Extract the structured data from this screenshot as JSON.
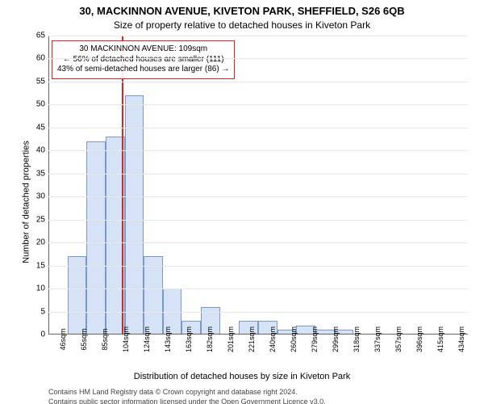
{
  "title_main": "30, MACKINNON AVENUE, KIVETON PARK, SHEFFIELD, S26 6QB",
  "title_sub": "Size of property relative to detached houses in Kiveton Park",
  "ylabel": "Number of detached properties",
  "xlabel": "Distribution of detached houses by size in Kiveton Park",
  "footer1": "Contains HM Land Registry data © Crown copyright and database right 2024.",
  "footer2": "Contains public sector information licensed under the Open Government Licence v3.0.",
  "annot": {
    "line1": "30 MACKINNON AVENUE: 109sqm",
    "line2": "← 56% of detached houses are smaller (111)",
    "line3": "43% of semi-detached houses are larger (86) →"
  },
  "chart": {
    "type": "histogram",
    "background_color": "#ffffff",
    "grid_color": "#e8e8e8",
    "bar_fill": "#d6e3f6",
    "bar_border": "#7a99c9",
    "ref_color": "#d22",
    "ymin": 0,
    "ymax": 65,
    "ytick_step": 5,
    "bin_start": 36,
    "bin_width": 19,
    "bin_count": 22,
    "ref_value": 109,
    "values": [
      0,
      17,
      42,
      43,
      52,
      17,
      10,
      3,
      6,
      0,
      3,
      3,
      1,
      2,
      1,
      1,
      0,
      0,
      0,
      0,
      0,
      0
    ],
    "xtick_labels": [
      "46sqm",
      "65sqm",
      "85sqm",
      "104sqm",
      "124sqm",
      "143sqm",
      "163sqm",
      "182sqm",
      "201sqm",
      "221sqm",
      "240sqm",
      "260sqm",
      "279sqm",
      "299sqm",
      "318sqm",
      "337sqm",
      "357sqm",
      "396sqm",
      "415sqm",
      "434sqm"
    ],
    "axis_fontsize": 10,
    "label_fontsize": 11,
    "title_fontsize": 13
  }
}
